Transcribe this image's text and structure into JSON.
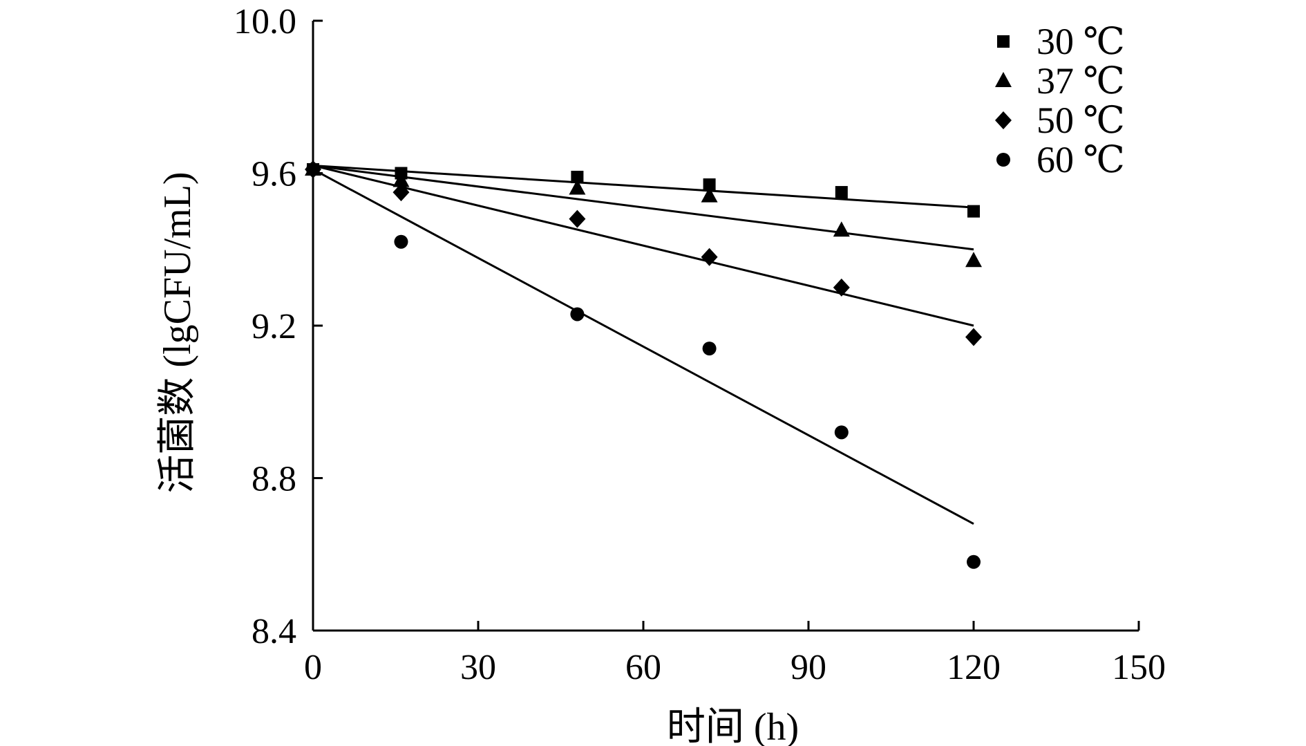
{
  "chart_data": {
    "type": "scatter",
    "xlabel": "时间 (h)",
    "ylabel": "活菌数 (lgCFU/mL)",
    "xlim": [
      0,
      150
    ],
    "ylim": [
      8.4,
      10.0
    ],
    "xticks": [
      0,
      30,
      60,
      90,
      120,
      150
    ],
    "yticks": [
      8.4,
      8.8,
      9.2,
      9.6,
      10.0
    ],
    "xtick_labels": [
      "0",
      "30",
      "60",
      "90",
      "120",
      "150"
    ],
    "ytick_labels": [
      "8.4",
      "8.8",
      "9.2",
      "9.6",
      "10.0"
    ],
    "grid": false,
    "legend_position": "top-right",
    "series": [
      {
        "name": "30 ℃",
        "marker": "square",
        "x": [
          0,
          16,
          48,
          72,
          96,
          120
        ],
        "y": [
          9.61,
          9.6,
          9.59,
          9.57,
          9.55,
          9.5
        ],
        "fit": [
          [
            0,
            9.62
          ],
          [
            120,
            9.51
          ]
        ]
      },
      {
        "name": "37 ℃",
        "marker": "triangle",
        "x": [
          0,
          16,
          48,
          72,
          96,
          120
        ],
        "y": [
          9.61,
          9.58,
          9.56,
          9.54,
          9.45,
          9.37
        ],
        "fit": [
          [
            0,
            9.62
          ],
          [
            120,
            9.4
          ]
        ]
      },
      {
        "name": "50 ℃",
        "marker": "diamond",
        "x": [
          0,
          16,
          48,
          72,
          96,
          120
        ],
        "y": [
          9.61,
          9.55,
          9.48,
          9.38,
          9.3,
          9.17
        ],
        "fit": [
          [
            0,
            9.62
          ],
          [
            120,
            9.2
          ]
        ]
      },
      {
        "name": "60 ℃",
        "marker": "circle",
        "x": [
          0,
          16,
          48,
          72,
          96,
          120
        ],
        "y": [
          9.61,
          9.42,
          9.23,
          9.14,
          8.92,
          8.58
        ],
        "fit": [
          [
            0,
            9.61
          ],
          [
            120,
            8.68
          ]
        ]
      }
    ]
  }
}
